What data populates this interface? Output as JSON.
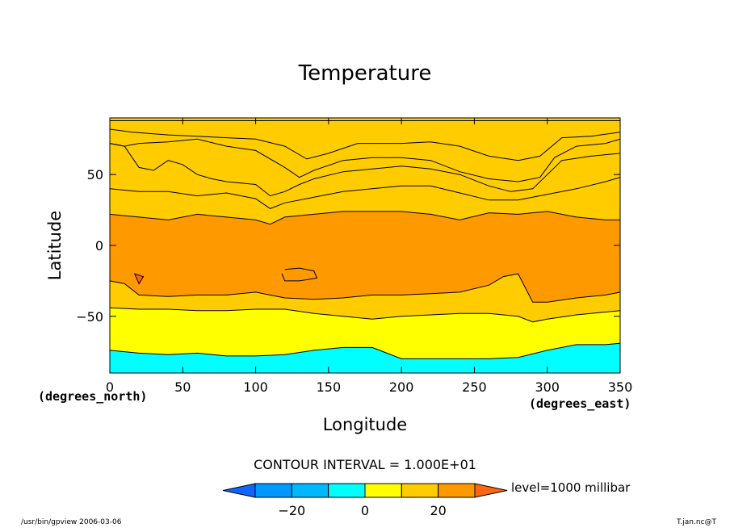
{
  "chart_data": {
    "type": "heatmap",
    "subtype": "filled-contour",
    "title": "Temperature",
    "xlabel": "Longitude",
    "ylabel": "Latitude",
    "x_unit": "(degrees_east)",
    "y_unit": "(degrees_north)",
    "xlim": [
      0,
      350
    ],
    "ylim": [
      -90,
      90
    ],
    "x_ticks": [
      0,
      50,
      100,
      150,
      200,
      250,
      300,
      350
    ],
    "y_ticks": [
      50,
      0,
      -50
    ],
    "contour_interval_label": "CONTOUR INTERVAL = 1.000E+01",
    "level_label": "level=1000 millibar",
    "colorbar": {
      "levels": [
        -30,
        -20,
        -10,
        0,
        10,
        20,
        30
      ],
      "tick_labels": [
        "−20",
        "0",
        "20"
      ],
      "tick_values": [
        -20,
        0,
        20
      ],
      "colors": [
        "#0d66ff",
        "#0099ff",
        "#00b8ff",
        "#00ffff",
        "#ffff00",
        "#ffcc00",
        "#ff9900",
        "#ff6611"
      ]
    },
    "contours": [
      {
        "level": -30,
        "x": [
          0,
          350
        ],
        "y": [
          88,
          88
        ]
      },
      {
        "level": -20,
        "x": [
          0,
          15,
          40,
          60,
          80,
          100,
          120,
          135,
          150,
          170,
          200,
          220,
          240,
          260,
          280,
          295,
          310,
          330,
          350
        ],
        "y": [
          82,
          80,
          78,
          77,
          76,
          75,
          70,
          61,
          65,
          72,
          72,
          73,
          70,
          63,
          60,
          63,
          76,
          77,
          80
        ]
      },
      {
        "level": -10,
        "x": [
          0,
          10,
          20,
          40,
          60,
          80,
          100,
          120,
          130,
          140,
          160,
          180,
          200,
          220,
          240,
          260,
          280,
          295,
          305,
          320,
          340,
          350
        ],
        "y": [
          72,
          70,
          72,
          73,
          75,
          70,
          67,
          55,
          48,
          53,
          60,
          62,
          62,
          60,
          52,
          47,
          45,
          48,
          62,
          70,
          72,
          75
        ]
      },
      {
        "level": 0,
        "x": [
          0,
          10,
          20,
          30,
          40,
          50,
          60,
          70,
          80,
          100,
          110,
          120,
          130,
          140,
          160,
          180,
          200,
          220,
          240,
          260,
          275,
          290,
          310,
          330,
          350
        ],
        "y": [
          72,
          70,
          55,
          53,
          60,
          57,
          50,
          47,
          45,
          43,
          35,
          38,
          43,
          47,
          52,
          54,
          56,
          54,
          50,
          42,
          38,
          40,
          60,
          63,
          65
        ]
      },
      {
        "level": 10,
        "x": [
          0,
          20,
          40,
          60,
          80,
          100,
          110,
          120,
          140,
          160,
          180,
          200,
          220,
          240,
          260,
          280,
          300,
          320,
          340,
          350
        ],
        "y": [
          40,
          38,
          38,
          35,
          37,
          33,
          26,
          30,
          34,
          38,
          40,
          42,
          42,
          37,
          32,
          32,
          36,
          40,
          45,
          48
        ]
      },
      {
        "level": 20,
        "x": [
          0,
          20,
          40,
          60,
          80,
          100,
          110,
          120,
          140,
          160,
          180,
          200,
          220,
          240,
          260,
          280,
          300,
          320,
          340,
          350
        ],
        "y": [
          22,
          20,
          18,
          22,
          20,
          18,
          15,
          20,
          22,
          24,
          24,
          24,
          22,
          18,
          23,
          22,
          24,
          20,
          18,
          18
        ]
      },
      {
        "level": 30,
        "x": [
          17,
          23,
          20,
          17
        ],
        "y": [
          -20,
          -22,
          -27,
          -20
        ]
      },
      {
        "level": 30,
        "x": [
          120,
          130,
          140,
          142,
          130,
          120,
          118
        ],
        "y": [
          -17,
          -16,
          -18,
          -23,
          -25,
          -25,
          -20
        ]
      },
      {
        "level": 20,
        "x": [
          0,
          10,
          20,
          40,
          60,
          80,
          100,
          120,
          140,
          160,
          180,
          200,
          220,
          240,
          260,
          270,
          280,
          290,
          300,
          320,
          340,
          350
        ],
        "y": [
          -25,
          -27,
          -35,
          -36,
          -35,
          -35,
          -33,
          -37,
          -38,
          -37,
          -35,
          -35,
          -34,
          -33,
          -28,
          -22,
          -20,
          -40,
          -40,
          -37,
          -35,
          -33
        ]
      },
      {
        "level": 10,
        "x": [
          0,
          20,
          40,
          60,
          80,
          100,
          120,
          140,
          160,
          180,
          200,
          220,
          240,
          260,
          280,
          290,
          300,
          320,
          340,
          350
        ],
        "y": [
          -44,
          -45,
          -45,
          -46,
          -46,
          -45,
          -45,
          -48,
          -50,
          -52,
          -50,
          -49,
          -48,
          -48,
          -50,
          -54,
          -52,
          -49,
          -47,
          -46
        ]
      },
      {
        "level": 0,
        "x": [
          0,
          20,
          40,
          60,
          80,
          100,
          120,
          140,
          160,
          180,
          200,
          220,
          240,
          260,
          280,
          300,
          320,
          340,
          350
        ],
        "y": [
          -74,
          -76,
          -77,
          -76,
          -78,
          -78,
          -77,
          -74,
          -72,
          -72,
          -80,
          -80,
          -80,
          -80,
          -79,
          -74,
          -70,
          -70,
          -69
        ]
      }
    ]
  },
  "footer": {
    "left": "/usr/bin/gpview   2006-03-06",
    "right": "T.jan.nc@T"
  }
}
